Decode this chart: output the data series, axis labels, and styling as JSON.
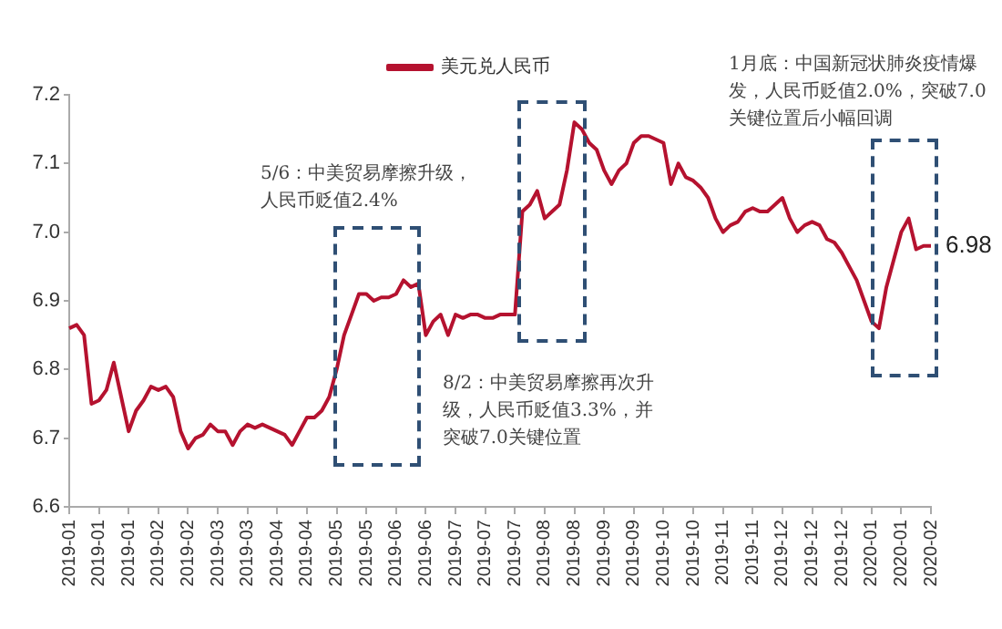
{
  "chart_data": {
    "type": "line",
    "categories": [
      "2019-01",
      null,
      null,
      null,
      "2019-01",
      null,
      null,
      null,
      "2019-01",
      null,
      null,
      null,
      "2019-02",
      null,
      null,
      null,
      "2019-02",
      null,
      null,
      null,
      "2019-03",
      null,
      null,
      null,
      "2019-03",
      null,
      null,
      null,
      "2019-04",
      null,
      null,
      null,
      "2019-04",
      null,
      null,
      null,
      "2019-05",
      null,
      null,
      null,
      "2019-05",
      null,
      null,
      null,
      "2019-06",
      null,
      null,
      null,
      "2019-06",
      null,
      null,
      null,
      "2019-07",
      null,
      null,
      null,
      "2019-07",
      null,
      null,
      null,
      "2019-07",
      null,
      null,
      null,
      "2019-08",
      null,
      null,
      null,
      "2019-08",
      null,
      null,
      null,
      "2019-09",
      null,
      null,
      null,
      "2019-09",
      null,
      null,
      null,
      "2019-10",
      null,
      null,
      null,
      "2019-10",
      null,
      null,
      null,
      "2019-11",
      null,
      null,
      null,
      "2019-11",
      null,
      null,
      null,
      "2019-12",
      null,
      null,
      null,
      "2019-12",
      null,
      null,
      null,
      "2019-12",
      null,
      null,
      null,
      "2020-01",
      null,
      null,
      null,
      "2020-01",
      null,
      null,
      null,
      "2020-02"
    ],
    "series": [
      {
        "name": "美元兑人民币",
        "color": "#b5122f",
        "values": [
          6.86,
          6.865,
          6.85,
          6.75,
          6.755,
          6.77,
          6.81,
          6.76,
          6.71,
          6.74,
          6.755,
          6.775,
          6.77,
          6.775,
          6.76,
          6.71,
          6.685,
          6.7,
          6.705,
          6.72,
          6.71,
          6.71,
          6.69,
          6.71,
          6.72,
          6.715,
          6.72,
          6.715,
          6.71,
          6.705,
          6.69,
          6.71,
          6.73,
          6.73,
          6.74,
          6.76,
          6.8,
          6.85,
          6.88,
          6.91,
          6.91,
          6.9,
          6.905,
          6.905,
          6.91,
          6.93,
          6.92,
          6.925,
          6.85,
          6.87,
          6.88,
          6.85,
          6.88,
          6.875,
          6.88,
          6.88,
          6.875,
          6.875,
          6.88,
          6.88,
          6.88,
          7.03,
          7.04,
          7.06,
          7.02,
          7.03,
          7.04,
          7.09,
          7.16,
          7.15,
          7.13,
          7.12,
          7.09,
          7.07,
          7.09,
          7.1,
          7.13,
          7.14,
          7.14,
          7.135,
          7.13,
          7.07,
          7.1,
          7.08,
          7.075,
          7.065,
          7.05,
          7.02,
          7.0,
          7.01,
          7.015,
          7.03,
          7.035,
          7.03,
          7.03,
          7.04,
          7.05,
          7.02,
          7.0,
          7.01,
          7.015,
          7.01,
          6.99,
          6.985,
          6.97,
          6.95,
          6.93,
          6.9,
          6.87,
          6.86,
          6.92,
          6.96,
          7.0,
          7.02,
          6.975,
          6.98,
          6.98
        ]
      }
    ],
    "ylim": [
      6.6,
      7.2
    ],
    "yticks": [
      6.6,
      6.7,
      6.8,
      6.9,
      {
        "value": 7,
        "label": "7.0"
      },
      7.1,
      7.2
    ],
    "grid": false,
    "legend": "top",
    "marker": "none",
    "line_style": "solid",
    "annotations": [
      "5/6：中美贸易摩擦升级，人民币贬值2.4%",
      "8/2：中美贸易摩擦再次升级，人民币贬值3.3%，并突破7.0关键位置",
      "1月底：中国新冠状肺炎疫情爆发，人民币贬值2.0%，突破7.0关键位置后小幅回调",
      {
        "text": "6.98",
        "x": "2020-02",
        "y": 6.98
      }
    ]
  }
}
